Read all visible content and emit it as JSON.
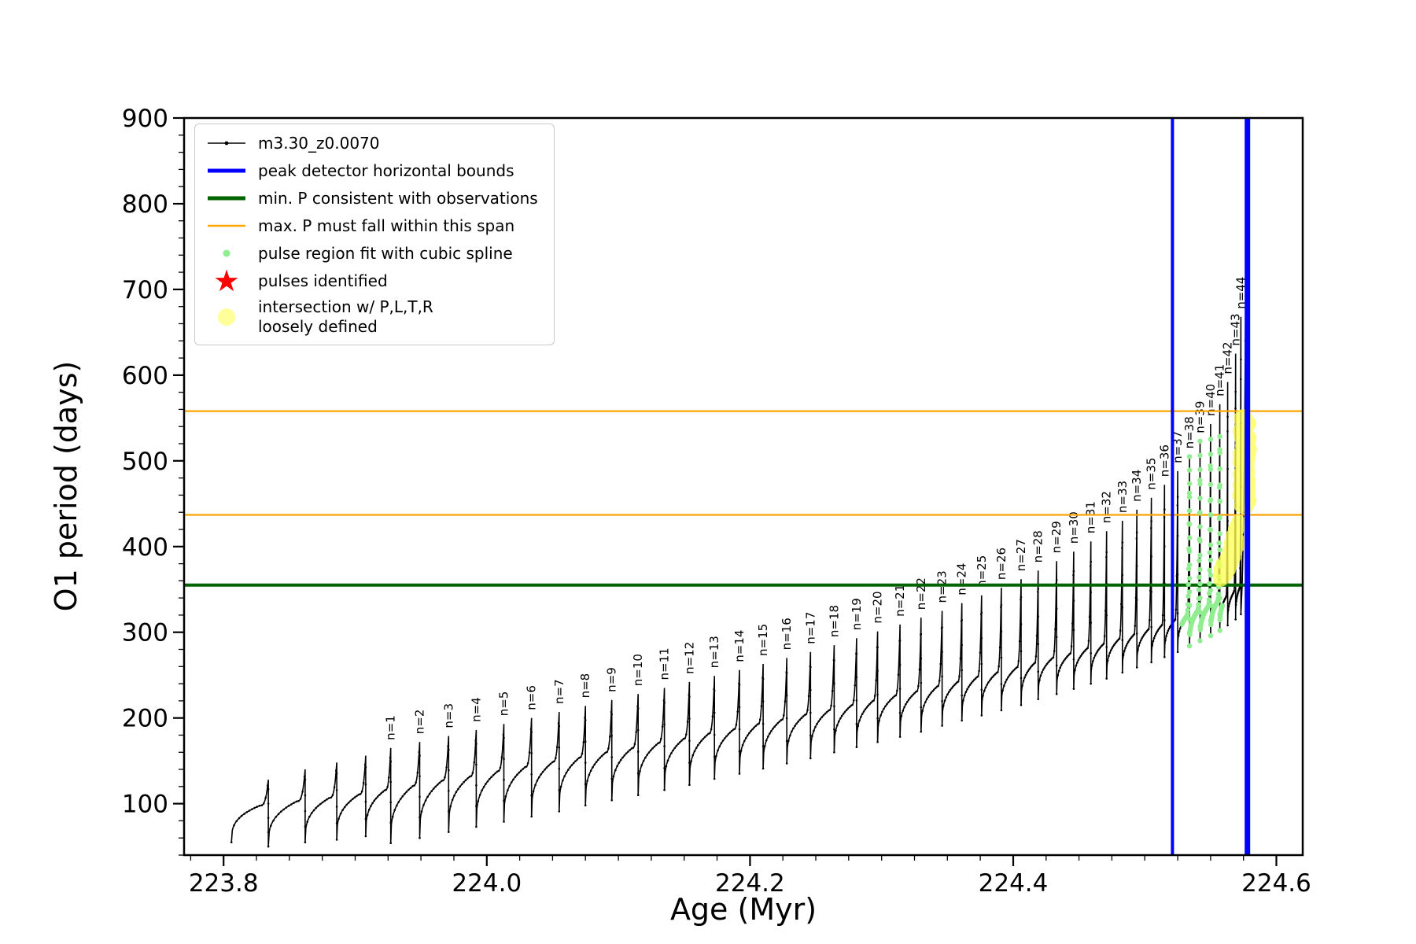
{
  "chart_data": {
    "type": "line",
    "title": "",
    "xlabel": "Age (Myr)",
    "ylabel": "O1 period (days)",
    "series_name": "m3.30_z0.0070",
    "xlim": [
      223.77,
      224.62
    ],
    "ylim": [
      40,
      900
    ],
    "xticks": [
      223.8,
      224.0,
      224.2,
      224.4,
      224.6
    ],
    "x_tick_labels": [
      "223.8",
      "224.0",
      "224.2",
      "224.4",
      "224.6"
    ],
    "yticks": [
      100,
      200,
      300,
      400,
      500,
      600,
      700,
      800,
      900
    ],
    "x_minor_step": 0.025,
    "y_minor_step": 20,
    "grid": false,
    "legend_position": "upper-left",
    "start": {
      "age": 223.806,
      "period": 55
    },
    "pre_pulses": [
      {
        "age": 223.834,
        "peak": 128,
        "dip": 50,
        "base": 98
      },
      {
        "age": 223.862,
        "peak": 140,
        "dip": 55,
        "base": 103
      },
      {
        "age": 223.886,
        "peak": 148,
        "dip": 58,
        "base": 107
      },
      {
        "age": 223.908,
        "peak": 156,
        "dip": 62,
        "base": 111
      }
    ],
    "pulses": [
      {
        "n": 1,
        "label": "n=1",
        "age": 223.927,
        "peak": 165,
        "dip": 54,
        "base": 116
      },
      {
        "n": 2,
        "label": "n=2",
        "age": 223.949,
        "peak": 172,
        "dip": 60,
        "base": 121
      },
      {
        "n": 3,
        "label": "n=3",
        "age": 223.971,
        "peak": 179,
        "dip": 67,
        "base": 127
      },
      {
        "n": 4,
        "label": "n=4",
        "age": 223.992,
        "peak": 186,
        "dip": 73,
        "base": 132
      },
      {
        "n": 5,
        "label": "n=5",
        "age": 224.013,
        "peak": 193,
        "dip": 79,
        "base": 138
      },
      {
        "n": 6,
        "label": "n=6",
        "age": 224.034,
        "peak": 200,
        "dip": 85,
        "base": 143
      },
      {
        "n": 7,
        "label": "n=7",
        "age": 224.055,
        "peak": 207,
        "dip": 91,
        "base": 149
      },
      {
        "n": 8,
        "label": "n=8",
        "age": 224.075,
        "peak": 214,
        "dip": 98,
        "base": 154
      },
      {
        "n": 9,
        "label": "n=9",
        "age": 224.095,
        "peak": 221,
        "dip": 104,
        "base": 160
      },
      {
        "n": 10,
        "label": "n=10",
        "age": 224.115,
        "peak": 228,
        "dip": 110,
        "base": 165
      },
      {
        "n": 11,
        "label": "n=11",
        "age": 224.135,
        "peak": 235,
        "dip": 116,
        "base": 171
      },
      {
        "n": 12,
        "label": "n=12",
        "age": 224.154,
        "peak": 242,
        "dip": 122,
        "base": 176
      },
      {
        "n": 13,
        "label": "n=13",
        "age": 224.173,
        "peak": 249,
        "dip": 129,
        "base": 182
      },
      {
        "n": 14,
        "label": "n=14",
        "age": 224.192,
        "peak": 256,
        "dip": 135,
        "base": 187
      },
      {
        "n": 15,
        "label": "n=15",
        "age": 224.21,
        "peak": 263,
        "dip": 141,
        "base": 193
      },
      {
        "n": 16,
        "label": "n=16",
        "age": 224.228,
        "peak": 270,
        "dip": 147,
        "base": 198
      },
      {
        "n": 17,
        "label": "n=17",
        "age": 224.246,
        "peak": 277,
        "dip": 153,
        "base": 204
      },
      {
        "n": 18,
        "label": "n=18",
        "age": 224.264,
        "peak": 285,
        "dip": 160,
        "base": 209
      },
      {
        "n": 19,
        "label": "n=19",
        "age": 224.281,
        "peak": 293,
        "dip": 166,
        "base": 215
      },
      {
        "n": 20,
        "label": "n=20",
        "age": 224.297,
        "peak": 301,
        "dip": 172,
        "base": 220
      },
      {
        "n": 21,
        "label": "n=21",
        "age": 224.314,
        "peak": 309,
        "dip": 178,
        "base": 226
      },
      {
        "n": 22,
        "label": "n=22",
        "age": 224.33,
        "peak": 317,
        "dip": 184,
        "base": 231
      },
      {
        "n": 23,
        "label": "n=23",
        "age": 224.346,
        "peak": 325,
        "dip": 191,
        "base": 237
      },
      {
        "n": 24,
        "label": "n=24",
        "age": 224.361,
        "peak": 334,
        "dip": 197,
        "base": 242
      },
      {
        "n": 25,
        "label": "n=25",
        "age": 224.376,
        "peak": 343,
        "dip": 203,
        "base": 248
      },
      {
        "n": 26,
        "label": "n=26",
        "age": 224.391,
        "peak": 352,
        "dip": 209,
        "base": 253
      },
      {
        "n": 27,
        "label": "n=27",
        "age": 224.406,
        "peak": 362,
        "dip": 215,
        "base": 259
      },
      {
        "n": 28,
        "label": "n=28",
        "age": 224.419,
        "peak": 372,
        "dip": 222,
        "base": 264
      },
      {
        "n": 29,
        "label": "n=29",
        "age": 224.433,
        "peak": 383,
        "dip": 228,
        "base": 270
      },
      {
        "n": 30,
        "label": "n=30",
        "age": 224.446,
        "peak": 394,
        "dip": 234,
        "base": 275
      },
      {
        "n": 31,
        "label": "n=31",
        "age": 224.459,
        "peak": 406,
        "dip": 240,
        "base": 281
      },
      {
        "n": 32,
        "label": "n=32",
        "age": 224.471,
        "peak": 418,
        "dip": 246,
        "base": 286
      },
      {
        "n": 33,
        "label": "n=33",
        "age": 224.483,
        "peak": 430,
        "dip": 253,
        "base": 292
      },
      {
        "n": 34,
        "label": "n=34",
        "age": 224.494,
        "peak": 443,
        "dip": 259,
        "base": 297
      },
      {
        "n": 35,
        "label": "n=35",
        "age": 224.505,
        "peak": 457,
        "dip": 265,
        "base": 303
      },
      {
        "n": 36,
        "label": "n=36",
        "age": 224.515,
        "peak": 472,
        "dip": 271,
        "base": 308
      },
      {
        "n": 37,
        "label": "n=37",
        "age": 224.525,
        "peak": 488,
        "dip": 277,
        "base": 314
      },
      {
        "n": 38,
        "label": "n=38",
        "age": 224.534,
        "peak": 505,
        "dip": 284,
        "base": 319
      },
      {
        "n": 39,
        "label": "n=39",
        "age": 224.542,
        "peak": 523,
        "dip": 290,
        "base": 325
      },
      {
        "n": 40,
        "label": "n=40",
        "age": 224.55,
        "peak": 543,
        "dip": 296,
        "base": 330
      },
      {
        "n": 41,
        "label": "n=41",
        "age": 224.557,
        "peak": 566,
        "dip": 302,
        "base": 336
      },
      {
        "n": 42,
        "label": "n=42",
        "age": 224.563,
        "peak": 592,
        "dip": 308,
        "base": 341
      },
      {
        "n": 43,
        "label": "n=43",
        "age": 224.569,
        "peak": 625,
        "dip": 315,
        "base": 347
      },
      {
        "n": 44,
        "label": "n=44",
        "age": 224.573,
        "peak": 668,
        "dip": 321,
        "base": 352
      }
    ],
    "final_points": [
      [
        224.574,
        355
      ],
      [
        224.5746,
        395
      ],
      [
        224.5751,
        440
      ],
      [
        224.5756,
        495
      ],
      [
        224.576,
        560
      ],
      [
        224.5764,
        640
      ],
      [
        224.5768,
        720
      ],
      [
        224.5771,
        790
      ],
      [
        224.5774,
        845
      ],
      [
        224.5776,
        855
      ],
      [
        224.5777,
        800
      ],
      [
        224.5778,
        720
      ],
      [
        224.5779,
        640
      ],
      [
        224.578,
        575
      ],
      [
        224.5781,
        520
      ],
      [
        224.5782,
        500
      ]
    ],
    "clipped_spike": {
      "age": 224.5766,
      "p_from": 700,
      "p_to": 900
    },
    "hlines": [
      {
        "y": 355,
        "color": "#006400",
        "width": 4,
        "name": "min-P-consistent"
      },
      {
        "y": 437,
        "color": "#ffa500",
        "width": 2.2,
        "name": "max-P-span-lower"
      },
      {
        "y": 558,
        "color": "#ffa500",
        "width": 2.2,
        "name": "max-P-span-upper"
      }
    ],
    "vlines": [
      {
        "x": 224.521,
        "color": "#0000ff",
        "width": 4,
        "name": "peak-detector-left-bound"
      },
      {
        "x": 224.578,
        "color": "#0000ff",
        "width": 7,
        "name": "peak-detector-right-bound"
      }
    ],
    "spline_region": {
      "age_min": 224.528,
      "age_max": 224.559,
      "p_min": 245,
      "p_max": 540,
      "color": "#90ee90",
      "dot_r": 3.2
    },
    "yellow_clusters": [
      {
        "age_min": 224.5565,
        "age_max": 224.5665,
        "p_min": 352,
        "p_max": 400,
        "count": 60,
        "diag": 0.55,
        "r": 8.5
      },
      {
        "age_min": 224.5635,
        "age_max": 224.5715,
        "p_min": 368,
        "p_max": 434,
        "count": 50,
        "diag": 0.5,
        "r": 8.5
      },
      {
        "age_min": 224.5723,
        "age_max": 224.5792,
        "p_min": 445,
        "p_max": 552,
        "count": 95,
        "diag": 0,
        "r": 10
      }
    ],
    "yellow_color": "#ffff55",
    "series_color": "#000000"
  },
  "legend": {
    "items": [
      {
        "label": "m3.30_z0.0070",
        "marker": "line-dot",
        "color": "#000000"
      },
      {
        "label": "peak detector horizontal bounds",
        "marker": "thick-line",
        "color": "#0000ff"
      },
      {
        "label": "min. P consistent with observations",
        "marker": "thick-line",
        "color": "#006400"
      },
      {
        "label": "max. P must fall within this span",
        "marker": "line",
        "color": "#ffa500"
      },
      {
        "label": "pulse region fit with cubic spline",
        "marker": "dot-small",
        "color": "#90ee90"
      },
      {
        "label": "pulses identified",
        "marker": "star",
        "color": "#ff0000"
      },
      {
        "label": "intersection w/ P,L,T,R",
        "label2": "loosely defined",
        "marker": "dot-large",
        "color": "#ffff99"
      }
    ]
  }
}
